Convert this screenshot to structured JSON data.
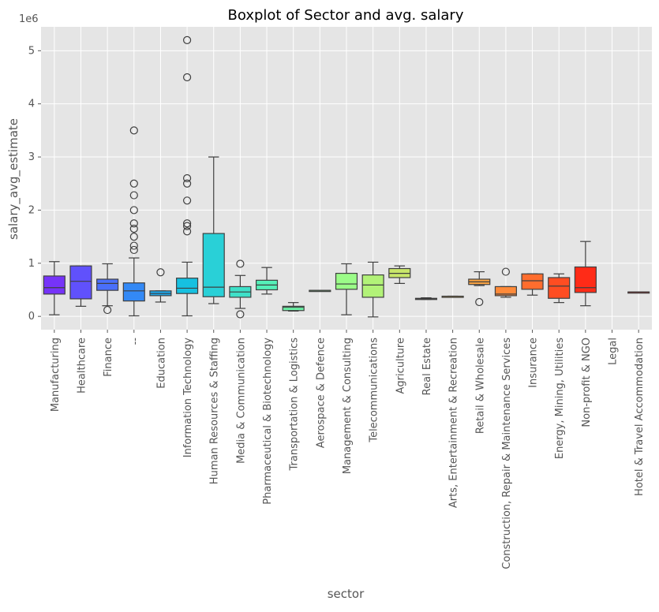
{
  "chart_data": {
    "type": "boxplot",
    "title": "Boxplot of Sector and avg. salary",
    "xlabel": "sector",
    "ylabel": "salary_avg_estimate",
    "y_offset_label": "1e6",
    "ylim": [
      -250000,
      5450000
    ],
    "yticks": [
      0,
      1000000,
      2000000,
      3000000,
      4000000,
      5000000
    ],
    "ytick_labels": [
      "0",
      "1",
      "2",
      "3",
      "4",
      "5"
    ],
    "grid": true,
    "background": "#e5e5e5",
    "categories": [
      "Manufacturing",
      "Healthcare",
      "Finance",
      "--",
      "Education",
      "Information Technology",
      "Human Resources & Staffing",
      "Media & Communication",
      "Pharmaceutical & Biotechnology",
      "Transportation & Logistics",
      "Aerospace & Defence",
      "Management & Consulting",
      "Telecommunications",
      "Agriculture",
      "Real Estate",
      "Arts, Entertainment & Recreation",
      "Retail & Wholesale",
      "Construction, Repair & Maintenance Services",
      "Insurance",
      "Energy, Mining, Utilities",
      "Non-profit & NGO",
      "Legal",
      "Hotel & Travel Accommodation"
    ],
    "colors": [
      "#7633f9",
      "#6051fc",
      "#4a6ffa",
      "#3389f6",
      "#1ea8ec",
      "#16c0e0",
      "#29d0d7",
      "#3ee0c8",
      "#55f0b8",
      "#6cf6a8",
      "#84fe98",
      "#9bfc88",
      "#b2f278",
      "#c9e66a",
      "#dcd45c",
      "#efbe4f",
      "#fba544",
      "#ff8a39",
      "#ff6d2e",
      "#ff4d22",
      "#ff2b17",
      "#ff1a0d",
      "#ff0000"
    ],
    "boxes": [
      {
        "whislo": 30000,
        "q1": 420000,
        "med": 540000,
        "q3": 760000,
        "whishi": 1030000,
        "fliers": []
      },
      {
        "whislo": 190000,
        "q1": 330000,
        "med": 660000,
        "q3": 950000,
        "whishi": 950000,
        "fliers": []
      },
      {
        "whislo": 200000,
        "q1": 490000,
        "med": 620000,
        "q3": 700000,
        "whishi": 990000,
        "fliers": [
          120000
        ]
      },
      {
        "whislo": 10000,
        "q1": 290000,
        "med": 480000,
        "q3": 630000,
        "whishi": 1100000,
        "fliers": [
          1250000,
          1330000,
          1500000,
          1650000,
          1750000,
          2000000,
          2280000,
          2500000,
          3500000
        ]
      },
      {
        "whislo": 270000,
        "q1": 390000,
        "med": 430000,
        "q3": 480000,
        "whishi": 480000,
        "fliers": [
          830000
        ]
      },
      {
        "whislo": 10000,
        "q1": 430000,
        "med": 530000,
        "q3": 720000,
        "whishi": 1020000,
        "fliers": [
          1600000,
          1700000,
          1750000,
          2180000,
          2500000,
          2600000,
          4500000,
          5200000
        ]
      },
      {
        "whislo": 240000,
        "q1": 370000,
        "med": 550000,
        "q3": 1560000,
        "whishi": 3000000,
        "fliers": []
      },
      {
        "whislo": 150000,
        "q1": 360000,
        "med": 460000,
        "q3": 560000,
        "whishi": 770000,
        "fliers": [
          40000,
          990000
        ]
      },
      {
        "whislo": 420000,
        "q1": 500000,
        "med": 590000,
        "q3": 680000,
        "whishi": 920000,
        "fliers": []
      },
      {
        "whislo": 100000,
        "q1": 110000,
        "med": 170000,
        "q3": 190000,
        "whishi": 260000,
        "fliers": []
      },
      {
        "whislo": 480000,
        "q1": 480000,
        "med": 490000,
        "q3": 490000,
        "whishi": 490000,
        "fliers": []
      },
      {
        "whislo": 30000,
        "q1": 510000,
        "med": 610000,
        "q3": 810000,
        "whishi": 990000,
        "fliers": []
      },
      {
        "whislo": -10000,
        "q1": 360000,
        "med": 590000,
        "q3": 780000,
        "whishi": 1020000,
        "fliers": []
      },
      {
        "whislo": 620000,
        "q1": 730000,
        "med": 810000,
        "q3": 900000,
        "whishi": 950000,
        "fliers": []
      },
      {
        "whislo": 320000,
        "q1": 320000,
        "med": 330000,
        "q3": 340000,
        "whishi": 350000,
        "fliers": []
      },
      {
        "whislo": 380000,
        "q1": 380000,
        "med": 380000,
        "q3": 380000,
        "whishi": 380000,
        "fliers": []
      },
      {
        "whislo": 580000,
        "q1": 600000,
        "med": 650000,
        "q3": 700000,
        "whishi": 840000,
        "fliers": [
          270000
        ]
      },
      {
        "whislo": 360000,
        "q1": 390000,
        "med": 420000,
        "q3": 560000,
        "whishi": 560000,
        "fliers": [
          840000
        ]
      },
      {
        "whislo": 400000,
        "q1": 510000,
        "med": 670000,
        "q3": 800000,
        "whishi": 800000,
        "fliers": []
      },
      {
        "whislo": 260000,
        "q1": 340000,
        "med": 570000,
        "q3": 730000,
        "whishi": 800000,
        "fliers": []
      },
      {
        "whislo": 200000,
        "q1": 450000,
        "med": 540000,
        "q3": 930000,
        "whishi": 1410000,
        "fliers": []
      },
      null,
      {
        "whislo": 460000,
        "q1": 460000,
        "med": 460000,
        "q3": 460000,
        "whishi": 460000,
        "fliers": []
      }
    ]
  }
}
